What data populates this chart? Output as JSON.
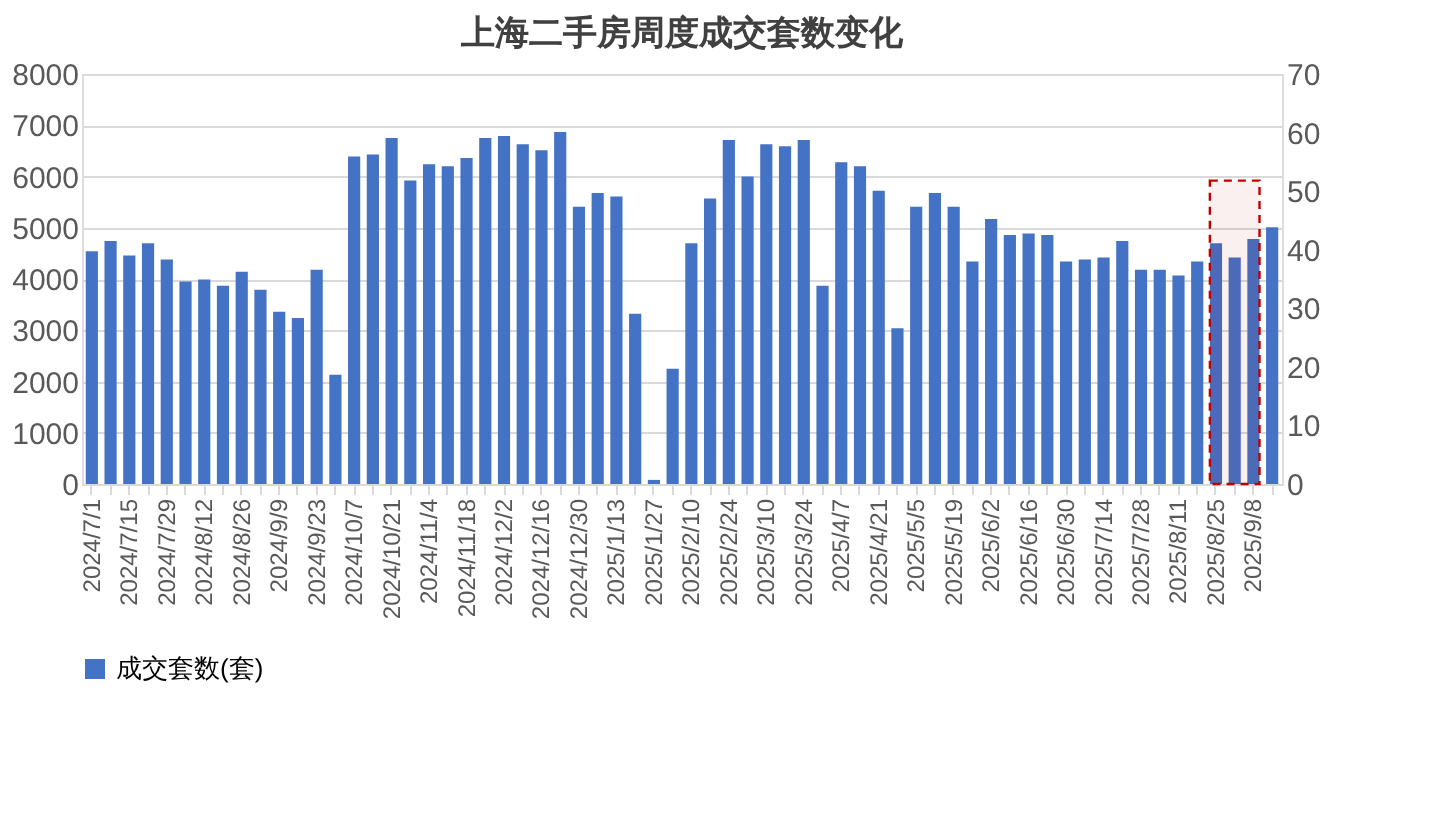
{
  "chart_data": {
    "type": "bar",
    "title": "上海二手房周度成交套数变化",
    "categories": [
      "2024/7/1",
      null,
      "2024/7/15",
      null,
      "2024/7/29",
      null,
      "2024/8/12",
      null,
      "2024/8/26",
      null,
      "2024/9/9",
      null,
      "2024/9/23",
      null,
      "2024/10/7",
      null,
      "2024/10/21",
      null,
      "2024/11/4",
      null,
      "2024/11/18",
      null,
      "2024/12/2",
      null,
      "2024/12/16",
      null,
      "2024/12/30",
      null,
      "2025/1/13",
      null,
      "2025/1/27",
      null,
      "2025/2/10",
      null,
      "2025/2/24",
      null,
      "2025/3/10",
      null,
      "2025/3/24",
      null,
      "2025/4/7",
      null,
      "2025/4/21",
      null,
      "2025/5/5",
      null,
      "2025/5/19",
      null,
      "2025/6/2",
      null,
      "2025/6/16",
      null,
      "2025/6/30",
      null,
      "2025/7/14",
      null,
      "2025/7/28",
      null,
      "2025/8/11",
      null,
      "2025/8/25",
      null,
      "2025/9/8",
      null
    ],
    "series": [
      {
        "name": "成交套数(套)",
        "color": "#4472c4",
        "values": [
          4540,
          4740,
          4460,
          4700,
          4380,
          3950,
          3990,
          3870,
          4140,
          3790,
          3360,
          3240,
          4180,
          2130,
          6390,
          6430,
          6750,
          5920,
          6240,
          6200,
          6360,
          6750,
          6790,
          6630,
          6510,
          6870,
          5410,
          5680,
          5610,
          3320,
          80,
          2250,
          4700,
          5570,
          6710,
          6000,
          6630,
          6590,
          6710,
          3870,
          6280,
          6200,
          5720,
          3040,
          5410,
          5680,
          5410,
          4340,
          5170,
          4860,
          4890,
          4860,
          4340,
          4380,
          4420,
          4740,
          4180,
          4180,
          4070,
          4340,
          4700,
          4420,
          4780,
          5010
        ]
      }
    ],
    "ylim": [
      0,
      8000
    ],
    "yticks": [
      0,
      1000,
      2000,
      3000,
      4000,
      5000,
      6000,
      7000,
      8000
    ],
    "y2lim": [
      0,
      70
    ],
    "y2ticks": [
      0,
      10,
      20,
      30,
      40,
      50,
      60,
      70
    ],
    "bands": [
      {
        "axis": "x",
        "from": "2025/8/25",
        "to": "2025/9/8",
        "color": "#c00000"
      }
    ],
    "grid": "y",
    "legend": "bottom"
  }
}
